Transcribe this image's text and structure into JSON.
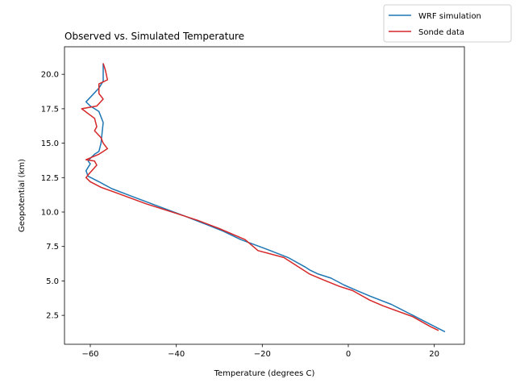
{
  "chart_data": {
    "type": "line",
    "title": "Observed vs. Simulated Temperature",
    "xlabel": "Temperature (degrees C)",
    "ylabel": "Geopotential (km)",
    "xlim": [
      -66,
      27
    ],
    "ylim": [
      0.4,
      22.0
    ],
    "xticks": [
      -60,
      -40,
      -20,
      0,
      20
    ],
    "xtick_labels": [
      "−60",
      "−40",
      "−20",
      "0",
      "20"
    ],
    "yticks": [
      2.5,
      5.0,
      7.5,
      10.0,
      12.5,
      15.0,
      17.5,
      20.0
    ],
    "ytick_labels": [
      "2.5",
      "5.0",
      "7.5",
      "10.0",
      "12.5",
      "15.0",
      "17.5",
      "20.0"
    ],
    "grid": false,
    "legend_position": "top-right (outside axes)",
    "series": [
      {
        "name": "WRF simulation",
        "color": "#1f77b4",
        "x": [
          22.5,
          20.0,
          15.0,
          10.0,
          5.0,
          2.0,
          -1.0,
          -4.0,
          -7.0,
          -9.0,
          -10.0,
          -14.0,
          -19.0,
          -25.0,
          -29.0,
          -33.0,
          -38.0,
          -44.0,
          -50.0,
          -55.0,
          -58.0,
          -60.5,
          -61.0,
          -60.0,
          -60.5,
          -60.0,
          -59.0,
          -58.0,
          -57.5,
          -57.0,
          -58.0,
          -60.0,
          -61.0,
          -59.5,
          -58.0,
          -57.0,
          -57.0,
          -57.0,
          -57.0
        ],
        "y": [
          1.3,
          1.7,
          2.5,
          3.3,
          3.9,
          4.3,
          4.7,
          5.2,
          5.5,
          5.8,
          6.0,
          6.7,
          7.3,
          8.0,
          8.6,
          9.1,
          9.7,
          10.4,
          11.1,
          11.7,
          12.2,
          12.6,
          13.0,
          13.5,
          13.7,
          13.9,
          14.2,
          14.4,
          15.0,
          16.5,
          17.3,
          17.7,
          18.0,
          18.5,
          19.0,
          19.5,
          19.8,
          20.3,
          20.8
        ]
      },
      {
        "name": "Sonde data",
        "color": "#d62728",
        "x": [
          21.0,
          19.0,
          15.0,
          8.0,
          5.0,
          1.0,
          -2.0,
          -6.0,
          -9.0,
          -10.5,
          -12.0,
          -15.0,
          -21.0,
          -24.0,
          -30.0,
          -35.0,
          -40.0,
          -47.0,
          -54.0,
          -57.5,
          -60.0,
          -61.0,
          -60.5,
          -58.5,
          -59.0,
          -61.0,
          -58.0,
          -56.0,
          -57.0,
          -57.5,
          -59.0,
          -58.5,
          -59.0,
          -62.0,
          -58.5,
          -57.0,
          -58.0,
          -58.0,
          -56.0,
          -56.5,
          -57.0
        ],
        "y": [
          1.4,
          1.7,
          2.4,
          3.2,
          3.6,
          4.3,
          4.6,
          5.1,
          5.5,
          5.8,
          6.1,
          6.7,
          7.2,
          8.0,
          8.8,
          9.4,
          9.9,
          10.6,
          11.4,
          11.8,
          12.2,
          12.5,
          12.7,
          13.4,
          13.7,
          13.8,
          14.2,
          14.6,
          15.0,
          15.4,
          15.9,
          16.2,
          16.8,
          17.5,
          17.7,
          18.2,
          18.6,
          19.3,
          19.6,
          20.3,
          20.8
        ]
      }
    ]
  }
}
